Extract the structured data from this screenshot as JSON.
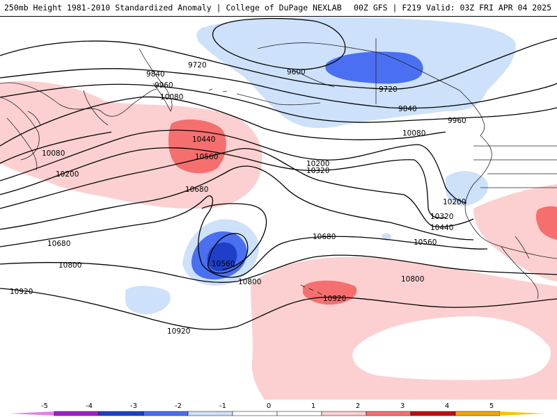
{
  "header": {
    "left_text": "250mb Height 1981-2010 Standardized Anomaly | College of DuPage NEXLAB",
    "right_text": "00Z GFS | F219 Valid: 03Z FRI APR 04 2025"
  },
  "colors": {
    "neg5": "#e080e8",
    "neg4": "#9e22c8",
    "neg3": "#1f3fc8",
    "neg2": "#4a6ff0",
    "neg1": "#cde1fa",
    "zero": "#ffffff",
    "pos1": "#fcd0d0",
    "pos2": "#f56f6f",
    "pos3": "#c01010",
    "pos4": "#f3a800",
    "pos5": "#f3c800"
  },
  "colorbar": {
    "ticks": [
      "-5",
      "-4",
      "-3",
      "-2",
      "-1",
      "0",
      "1",
      "2",
      "3",
      "4",
      "5"
    ]
  },
  "contour_labels": {
    "c9720a": "9720",
    "c9600": "9600",
    "c9720b": "9720",
    "c9840a": "9840",
    "c9960a": "9960",
    "c10080a": "10080",
    "c9840b": "9840",
    "c9960b": "9960",
    "c10080b": "10080",
    "c10440a": "10440",
    "c10560a": "10560",
    "c10080c": "10080",
    "c10200a": "10200",
    "c10200b": "10200",
    "c10320a": "10320",
    "c10680a": "10680",
    "c10200c": "10200",
    "c10320b": "10320",
    "c10440b": "10440",
    "c10680b": "10680",
    "c10680c": "10680",
    "c10560b": "10560",
    "c10560c": "10560",
    "c10800a": "10800",
    "c10800b": "10800",
    "c10800c": "10800",
    "c10920a": "10920",
    "c10920b": "10920",
    "c10920c": "10920"
  }
}
